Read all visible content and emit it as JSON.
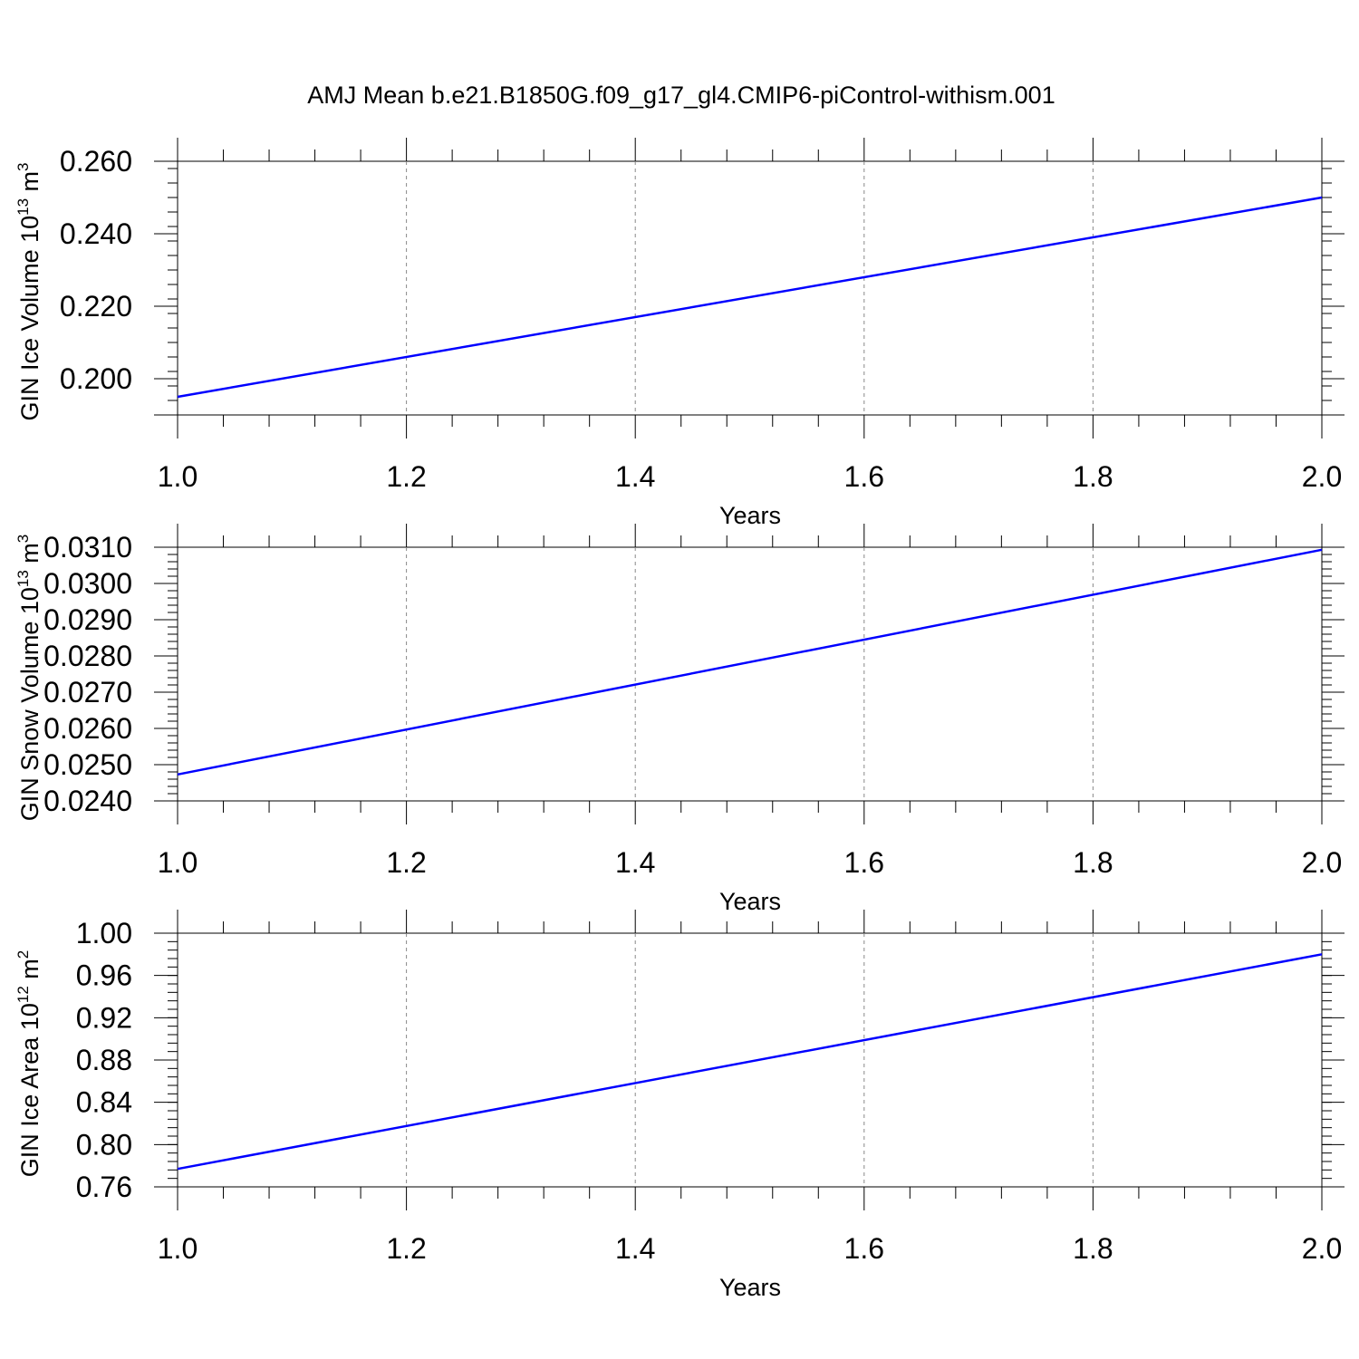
{
  "title": "AMJ Mean b.e21.B1850G.f09_g17_gl4.CMIP6-piControl-withism.001",
  "line_color": "#0000ff",
  "chart_data": [
    {
      "type": "line",
      "xlabel": "Years",
      "ylabel": {
        "text": "GIN Ice Volume 10",
        "exp": "13",
        "unit": " m",
        "unit_exp": "3"
      },
      "xlim": [
        1.0,
        2.0
      ],
      "ylim": [
        0.19,
        0.26
      ],
      "x_ticks": [
        "1.0",
        "1.2",
        "1.4",
        "1.6",
        "1.8",
        "2.0"
      ],
      "y_ticks": [
        {
          "v": 0.26,
          "label": "0.260"
        },
        {
          "v": 0.24,
          "label": "0.240"
        },
        {
          "v": 0.22,
          "label": "0.220"
        },
        {
          "v": 0.2,
          "label": "0.200"
        }
      ],
      "x": [
        1.0,
        2.0
      ],
      "y": [
        0.195,
        0.25
      ],
      "grid": "vertical-dashed"
    },
    {
      "type": "line",
      "xlabel": "Years",
      "ylabel": {
        "text": "GIN Snow Volume 10",
        "exp": "13",
        "unit": " m",
        "unit_exp": "3"
      },
      "xlim": [
        1.0,
        2.0
      ],
      "ylim": [
        0.024,
        0.031
      ],
      "x_ticks": [
        "1.0",
        "1.2",
        "1.4",
        "1.6",
        "1.8",
        "2.0"
      ],
      "y_ticks": [
        {
          "v": 0.031,
          "label": "0.0310"
        },
        {
          "v": 0.03,
          "label": "0.0300"
        },
        {
          "v": 0.029,
          "label": "0.0290"
        },
        {
          "v": 0.028,
          "label": "0.0280"
        },
        {
          "v": 0.027,
          "label": "0.0270"
        },
        {
          "v": 0.026,
          "label": "0.0260"
        },
        {
          "v": 0.025,
          "label": "0.0250"
        },
        {
          "v": 0.024,
          "label": "0.0240"
        }
      ],
      "x": [
        1.0,
        2.0
      ],
      "y": [
        0.02473,
        0.03093
      ],
      "grid": "vertical-dashed"
    },
    {
      "type": "line",
      "xlabel": "Years",
      "ylabel": {
        "text": "GIN Ice Area 10",
        "exp": "12",
        "unit": " m",
        "unit_exp": "2"
      },
      "xlim": [
        1.0,
        2.0
      ],
      "ylim": [
        0.76,
        1.0
      ],
      "x_ticks": [
        "1.0",
        "1.2",
        "1.4",
        "1.6",
        "1.8",
        "2.0"
      ],
      "y_ticks": [
        {
          "v": 1.0,
          "label": "1.00"
        },
        {
          "v": 0.96,
          "label": "0.96"
        },
        {
          "v": 0.92,
          "label": "0.92"
        },
        {
          "v": 0.88,
          "label": "0.88"
        },
        {
          "v": 0.84,
          "label": "0.84"
        },
        {
          "v": 0.8,
          "label": "0.80"
        },
        {
          "v": 0.76,
          "label": "0.76"
        }
      ],
      "x": [
        1.0,
        2.0
      ],
      "y": [
        0.777,
        0.98
      ],
      "grid": "vertical-dashed"
    }
  ]
}
